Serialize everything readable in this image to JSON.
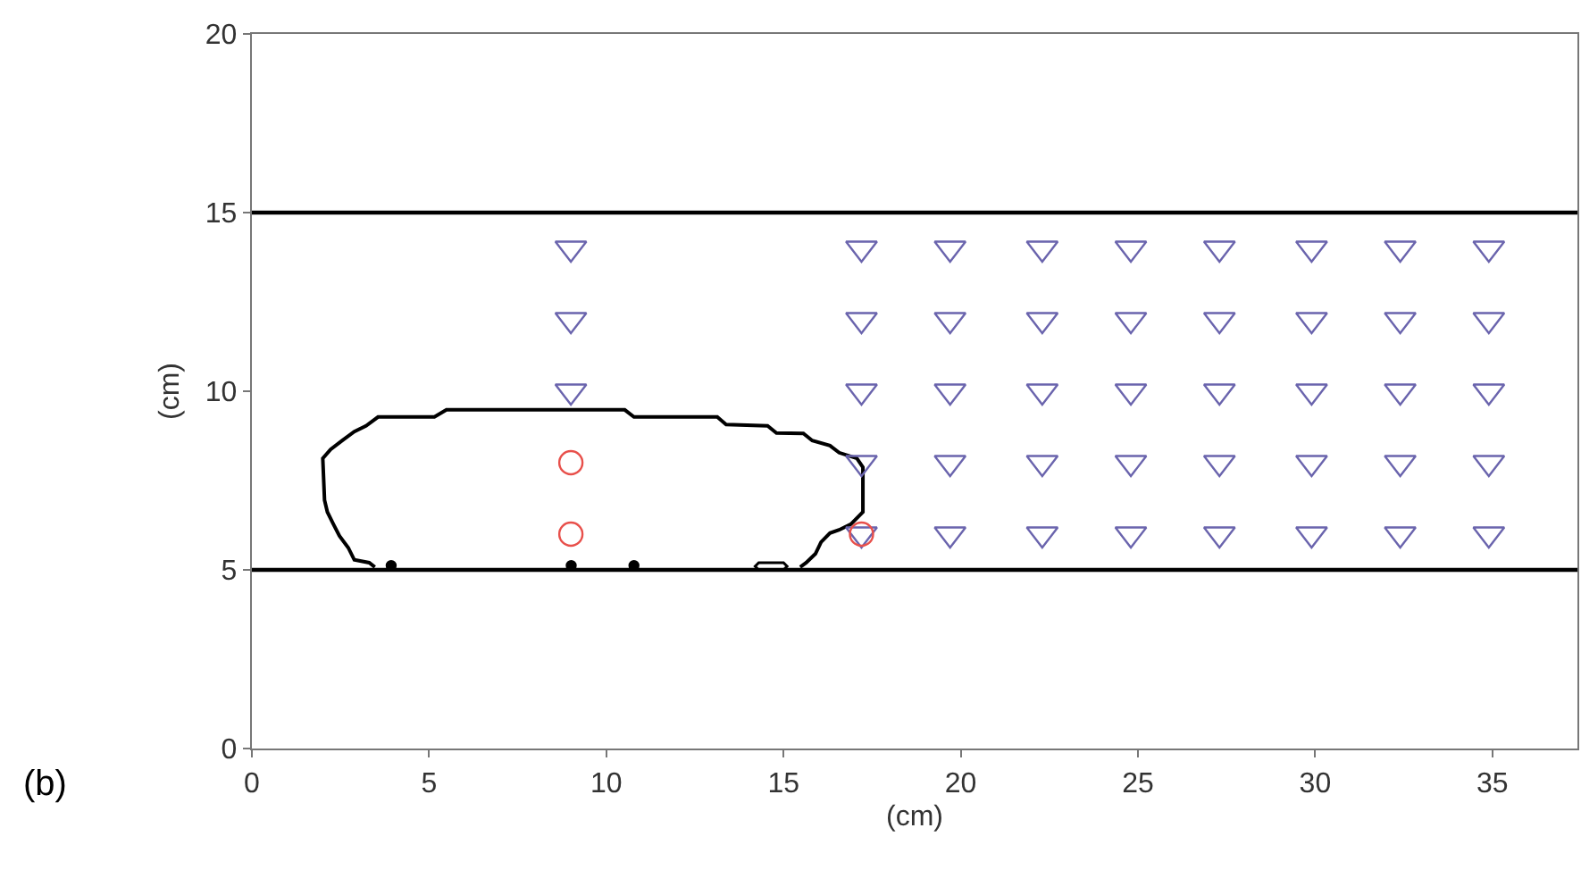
{
  "chart_data": {
    "type": "scatter",
    "xlabel": "(cm)",
    "ylabel": "(cm)",
    "annotations": [
      "(b)"
    ],
    "xlim": [
      0,
      37.4
    ],
    "xticks": [
      0,
      5,
      10,
      15,
      20,
      25,
      30,
      35
    ],
    "ylim": [
      0,
      20
    ],
    "yticks": [
      0,
      5,
      10,
      15,
      20
    ],
    "ref_lines": [
      {
        "axis": "y",
        "value": 15,
        "color": "#000000"
      },
      {
        "axis": "y",
        "value": 5,
        "color": "#000000"
      }
    ],
    "series": [
      {
        "marker": "triangle",
        "color": "#6a64ad",
        "x": [
          9,
          9,
          9,
          17.2,
          17.2,
          17.2,
          17.2,
          17.2,
          19.7,
          19.7,
          19.7,
          19.7,
          19.7,
          22.3,
          22.3,
          22.3,
          22.3,
          22.3,
          24.8,
          24.8,
          24.8,
          24.8,
          24.8,
          27.3,
          27.3,
          27.3,
          27.3,
          27.3,
          29.9,
          29.9,
          29.9,
          29.9,
          29.9,
          32.4,
          32.4,
          32.4,
          32.4,
          32.4,
          34.9,
          34.9,
          34.9,
          34.9,
          34.9
        ],
        "values": [
          14,
          12,
          10,
          14,
          12,
          10,
          8,
          6,
          14,
          12,
          10,
          8,
          6,
          14,
          12,
          10,
          8,
          6,
          14,
          12,
          10,
          8,
          6,
          14,
          12,
          10,
          8,
          6,
          14,
          12,
          10,
          8,
          6,
          14,
          12,
          10,
          8,
          6,
          14,
          12,
          10,
          8,
          6
        ]
      },
      {
        "marker": "circle",
        "color": "#e8504b",
        "x": [
          9,
          9,
          17.2
        ],
        "values": [
          8,
          6,
          6
        ]
      },
      {
        "type": "line",
        "color": "#000000",
        "x": [
          3.47,
          3.31,
          2.89,
          2.72,
          2.47,
          2.3,
          2.13,
          2.05,
          2.0,
          2.22,
          2.55,
          2.89,
          3.22,
          3.56,
          5.15,
          5.49,
          10.52,
          10.78,
          13.13,
          13.38,
          14.55,
          14.8,
          15.56,
          15.81,
          16.31,
          16.57,
          17.07,
          17.24,
          17.24,
          16.9,
          16.57,
          16.31,
          16.06,
          15.9,
          15.64,
          15.47
        ],
        "values": [
          5.08,
          5.2,
          5.28,
          5.62,
          5.95,
          6.28,
          6.62,
          6.95,
          8.12,
          8.37,
          8.62,
          8.87,
          9.03,
          9.28,
          9.28,
          9.48,
          9.48,
          9.28,
          9.28,
          9.07,
          9.03,
          8.83,
          8.82,
          8.62,
          8.48,
          8.28,
          8.12,
          7.87,
          6.62,
          6.28,
          6.12,
          6.03,
          5.78,
          5.45,
          5.2,
          5.08
        ]
      },
      {
        "type": "line",
        "color": "#000000",
        "x": [
          14.3,
          14.2,
          14.3,
          15.0,
          15.1,
          15.0
        ],
        "values": [
          5.0,
          5.1,
          5.2,
          5.2,
          5.1,
          5.0
        ]
      },
      {
        "marker": "dot",
        "color": "#000000",
        "x": [
          3.93,
          9.01,
          10.78
        ],
        "values": [
          5.12,
          5.12,
          5.12
        ]
      }
    ]
  }
}
